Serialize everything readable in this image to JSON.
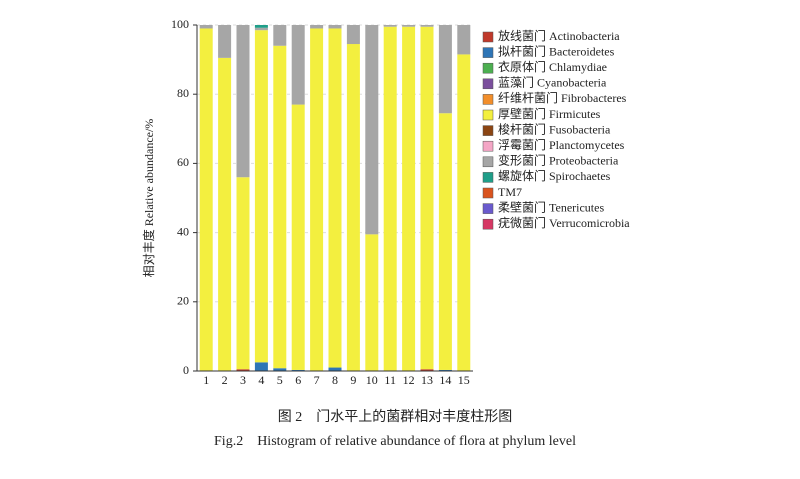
{
  "chart_data": {
    "type": "stacked_bar",
    "ylabel": "相对丰度 Relative abundance/%",
    "caption_cn": "图 2　门水平上的菌群相对丰度柱形图",
    "caption_en": "Fig.2　Histogram of relative abundance of flora at phylum level",
    "categories": [
      "1",
      "2",
      "3",
      "4",
      "5",
      "6",
      "7",
      "8",
      "9",
      "10",
      "11",
      "12",
      "13",
      "14",
      "15"
    ],
    "ylim": [
      0,
      100
    ],
    "yticks": [
      0,
      20,
      40,
      60,
      80,
      100
    ],
    "grid": true,
    "legend": "right",
    "series": [
      {
        "name": "放线菌门 Actinobacteria",
        "color": "#c0392b",
        "values": [
          0,
          0,
          0.5,
          0,
          0,
          0,
          0,
          0,
          0,
          0,
          0,
          0,
          0.5,
          0,
          0
        ]
      },
      {
        "name": "拟杆菌门 Bacteroidetes",
        "color": "#2e75b6",
        "values": [
          0,
          0,
          0,
          2.5,
          0.8,
          0.3,
          0,
          1,
          0,
          0,
          0,
          0,
          0,
          0.3,
          0
        ]
      },
      {
        "name": "衣原体门 Chlamydiae",
        "color": "#4caf50",
        "values": [
          0,
          0,
          0,
          0,
          0,
          0,
          0,
          0,
          0,
          0,
          0,
          0,
          0,
          0,
          0
        ]
      },
      {
        "name": "蓝藻门 Cyanobacteria",
        "color": "#7b4f9d",
        "values": [
          0,
          0,
          0,
          0,
          0,
          0,
          0,
          0,
          0,
          0,
          0,
          0,
          0,
          0,
          0
        ]
      },
      {
        "name": "纤维杆菌门 Fibrobacteres",
        "color": "#f28e2b",
        "values": [
          0,
          0,
          0,
          0,
          0,
          0,
          0,
          0,
          0,
          0,
          0,
          0,
          0,
          0,
          0
        ]
      },
      {
        "name": "厚壁菌门 Firmicutes",
        "color": "#f3ef3f",
        "values": [
          99,
          90.5,
          55.5,
          96,
          93.2,
          76.7,
          99,
          98,
          94.5,
          39.5,
          99.5,
          99.5,
          99,
          74.2,
          91.5
        ]
      },
      {
        "name": "梭杆菌门 Fusobacteria",
        "color": "#8b4513",
        "values": [
          0,
          0,
          0,
          0,
          0,
          0,
          0,
          0,
          0,
          0,
          0,
          0,
          0,
          0,
          0
        ]
      },
      {
        "name": "浮霉菌门 Planctomycetes",
        "color": "#f4a6c6",
        "values": [
          0,
          0,
          0,
          0,
          0,
          0,
          0,
          0,
          0,
          0,
          0,
          0,
          0,
          0,
          0
        ]
      },
      {
        "name": "变形菌门 Proteobacteria",
        "color": "#a6a6a6",
        "values": [
          1,
          9.5,
          44,
          0.7,
          6,
          23,
          1,
          1,
          5.5,
          60.5,
          0.5,
          0.5,
          0.5,
          25.5,
          8.5
        ]
      },
      {
        "name": "螺旋体门 Spirochaetes",
        "color": "#1f9e89",
        "values": [
          0,
          0,
          0,
          0.8,
          0,
          0,
          0,
          0,
          0,
          0,
          0,
          0,
          0,
          0,
          0
        ]
      },
      {
        "name": "TM7",
        "color": "#d9531e",
        "values": [
          0,
          0,
          0,
          0,
          0,
          0,
          0,
          0,
          0,
          0,
          0,
          0,
          0,
          0,
          0
        ]
      },
      {
        "name": "柔壁菌门 Tenericutes",
        "color": "#6a5acd",
        "values": [
          0,
          0,
          0,
          0,
          0,
          0,
          0,
          0,
          0,
          0,
          0,
          0,
          0,
          0,
          0
        ]
      },
      {
        "name": "疣微菌门 Verrucomicrobia",
        "color": "#d63864",
        "values": [
          0,
          0,
          0,
          0,
          0,
          0,
          0,
          0,
          0,
          0,
          0,
          0,
          0,
          0,
          0
        ]
      }
    ]
  }
}
